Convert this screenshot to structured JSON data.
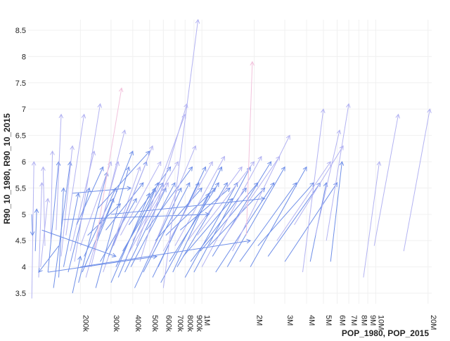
{
  "chart_data": {
    "type": "scatter",
    "mark": "arrow",
    "title": "",
    "xlabel": "POP_1980, POP_2015",
    "ylabel": "R90_10_1980, R90_10_2015",
    "x_scale": "log",
    "xlim": [
      100000,
      21000000
    ],
    "ylim": [
      3.3,
      8.7
    ],
    "grid": true,
    "legend": "none",
    "colors": {
      "arrow_main": "#6f8fe8",
      "arrow_light": "#b3b3f2",
      "arrow_pink": "#f2c2dc",
      "grid": "#f0f0f0",
      "text": "#222222"
    },
    "x_ticks": [
      {
        "value": 200000,
        "label": "200k"
      },
      {
        "value": 300000,
        "label": "300k"
      },
      {
        "value": 400000,
        "label": "400k"
      },
      {
        "value": 500000,
        "label": "500k"
      },
      {
        "value": 600000,
        "label": "600k"
      },
      {
        "value": 700000,
        "label": "700k"
      },
      {
        "value": 800000,
        "label": "800k"
      },
      {
        "value": 900000,
        "label": "900k"
      },
      {
        "value": 1000000,
        "label": "1M"
      },
      {
        "value": 2000000,
        "label": "2M"
      },
      {
        "value": 3000000,
        "label": "3M"
      },
      {
        "value": 4000000,
        "label": "4M"
      },
      {
        "value": 5000000,
        "label": "5M"
      },
      {
        "value": 6000000,
        "label": "6M"
      },
      {
        "value": 7000000,
        "label": "7M"
      },
      {
        "value": 8000000,
        "label": "8M"
      },
      {
        "value": 9000000,
        "label": "9M"
      },
      {
        "value": 10000000,
        "label": "10M"
      },
      {
        "value": 20000000,
        "label": "20M"
      }
    ],
    "y_ticks": [
      3.5,
      4,
      4.5,
      5,
      5.5,
      6,
      6.5,
      7,
      7.5,
      8,
      8.5
    ],
    "arrows": [
      {
        "x1": 105000,
        "y1": 3.4,
        "x2": 108000,
        "y2": 6.0,
        "tone": "light"
      },
      {
        "x1": 110000,
        "y1": 4.3,
        "x2": 112000,
        "y2": 5.1,
        "tone": "main"
      },
      {
        "x1": 105000,
        "y1": 5.0,
        "x2": 106000,
        "y2": 4.6,
        "tone": "main"
      },
      {
        "x1": 115000,
        "y1": 3.8,
        "x2": 120000,
        "y2": 5.6,
        "tone": "light"
      },
      {
        "x1": 118000,
        "y1": 4.0,
        "x2": 130000,
        "y2": 5.3,
        "tone": "light"
      },
      {
        "x1": 125000,
        "y1": 4.4,
        "x2": 122000,
        "y2": 5.9,
        "tone": "light"
      },
      {
        "x1": 130000,
        "y1": 3.9,
        "x2": 150000,
        "y2": 6.0,
        "tone": "main"
      },
      {
        "x1": 135000,
        "y1": 4.5,
        "x2": 138000,
        "y2": 6.2,
        "tone": "light"
      },
      {
        "x1": 140000,
        "y1": 3.6,
        "x2": 175000,
        "y2": 6.0,
        "tone": "main"
      },
      {
        "x1": 145000,
        "y1": 4.7,
        "x2": 155000,
        "y2": 6.9,
        "tone": "light"
      },
      {
        "x1": 150000,
        "y1": 3.8,
        "x2": 160000,
        "y2": 5.5,
        "tone": "main"
      },
      {
        "x1": 155000,
        "y1": 4.2,
        "x2": 180000,
        "y2": 6.3,
        "tone": "light"
      },
      {
        "x1": 160000,
        "y1": 4.0,
        "x2": 195000,
        "y2": 5.4,
        "tone": "main"
      },
      {
        "x1": 165000,
        "y1": 4.6,
        "x2": 210000,
        "y2": 6.9,
        "tone": "light"
      },
      {
        "x1": 170000,
        "y1": 3.9,
        "x2": 225000,
        "y2": 5.5,
        "tone": "main"
      },
      {
        "x1": 175000,
        "y1": 4.3,
        "x2": 240000,
        "y2": 6.2,
        "tone": "light"
      },
      {
        "x1": 180000,
        "y1": 3.5,
        "x2": 200000,
        "y2": 4.2,
        "tone": "main"
      },
      {
        "x1": 185000,
        "y1": 4.1,
        "x2": 260000,
        "y2": 7.1,
        "tone": "light"
      },
      {
        "x1": 190000,
        "y1": 4.8,
        "x2": 270000,
        "y2": 5.9,
        "tone": "main"
      },
      {
        "x1": 195000,
        "y1": 3.7,
        "x2": 285000,
        "y2": 5.8,
        "tone": "main"
      },
      {
        "x1": 200000,
        "y1": 4.4,
        "x2": 300000,
        "y2": 6.0,
        "tone": "light"
      },
      {
        "x1": 205000,
        "y1": 3.9,
        "x2": 310000,
        "y2": 5.3,
        "tone": "main"
      },
      {
        "x1": 210000,
        "y1": 4.2,
        "x2": 320000,
        "y2": 5.5,
        "tone": "main"
      },
      {
        "x1": 215000,
        "y1": 3.8,
        "x2": 330000,
        "y2": 6.0,
        "tone": "light"
      },
      {
        "x1": 220000,
        "y1": 4.6,
        "x2": 340000,
        "y2": 5.2,
        "tone": "main"
      },
      {
        "x1": 180000,
        "y1": 5.4,
        "x2": 390000,
        "y2": 5.5,
        "tone": "main"
      },
      {
        "x1": 230000,
        "y1": 4.0,
        "x2": 360000,
        "y2": 6.6,
        "tone": "light"
      },
      {
        "x1": 240000,
        "y1": 4.3,
        "x2": 345000,
        "y2": 7.4,
        "tone": "pink"
      },
      {
        "x1": 245000,
        "y1": 3.6,
        "x2": 380000,
        "y2": 5.9,
        "tone": "main"
      },
      {
        "x1": 250000,
        "y1": 4.5,
        "x2": 400000,
        "y2": 6.2,
        "tone": "main"
      },
      {
        "x1": 260000,
        "y1": 4.1,
        "x2": 420000,
        "y2": 5.3,
        "tone": "main"
      },
      {
        "x1": 270000,
        "y1": 3.9,
        "x2": 440000,
        "y2": 5.9,
        "tone": "light"
      },
      {
        "x1": 280000,
        "y1": 4.7,
        "x2": 460000,
        "y2": 5.6,
        "tone": "main"
      },
      {
        "x1": 290000,
        "y1": 4.2,
        "x2": 480000,
        "y2": 6.0,
        "tone": "main"
      },
      {
        "x1": 300000,
        "y1": 3.7,
        "x2": 500000,
        "y2": 5.4,
        "tone": "main"
      },
      {
        "x1": 310000,
        "y1": 4.4,
        "x2": 520000,
        "y2": 6.3,
        "tone": "light"
      },
      {
        "x1": 320000,
        "y1": 4.0,
        "x2": 540000,
        "y2": 5.5,
        "tone": "main"
      },
      {
        "x1": 330000,
        "y1": 3.8,
        "x2": 560000,
        "y2": 5.6,
        "tone": "main"
      },
      {
        "x1": 340000,
        "y1": 4.6,
        "x2": 580000,
        "y2": 6.0,
        "tone": "light"
      },
      {
        "x1": 350000,
        "y1": 4.3,
        "x2": 600000,
        "y2": 5.6,
        "tone": "main"
      },
      {
        "x1": 360000,
        "y1": 3.9,
        "x2": 620000,
        "y2": 5.5,
        "tone": "main"
      },
      {
        "x1": 370000,
        "y1": 4.2,
        "x2": 640000,
        "y2": 5.6,
        "tone": "light"
      },
      {
        "x1": 380000,
        "y1": 4.8,
        "x2": 660000,
        "y2": 5.9,
        "tone": "main"
      },
      {
        "x1": 390000,
        "y1": 4.0,
        "x2": 700000,
        "y2": 5.6,
        "tone": "main"
      },
      {
        "x1": 400000,
        "y1": 4.5,
        "x2": 730000,
        "y2": 6.0,
        "tone": "light"
      },
      {
        "x1": 410000,
        "y1": 3.6,
        "x2": 760000,
        "y2": 5.5,
        "tone": "main"
      },
      {
        "x1": 420000,
        "y1": 4.4,
        "x2": 800000,
        "y2": 6.9,
        "tone": "light"
      },
      {
        "x1": 440000,
        "y1": 4.1,
        "x2": 820000,
        "y2": 7.1,
        "tone": "light"
      },
      {
        "x1": 460000,
        "y1": 3.9,
        "x2": 850000,
        "y2": 5.6,
        "tone": "main"
      },
      {
        "x1": 480000,
        "y1": 4.7,
        "x2": 880000,
        "y2": 5.9,
        "tone": "main"
      },
      {
        "x1": 500000,
        "y1": 4.2,
        "x2": 920000,
        "y2": 6.3,
        "tone": "light"
      },
      {
        "x1": 520000,
        "y1": 3.8,
        "x2": 960000,
        "y2": 5.6,
        "tone": "main"
      },
      {
        "x1": 540000,
        "y1": 4.5,
        "x2": 1000000,
        "y2": 5.5,
        "tone": "main"
      },
      {
        "x1": 560000,
        "y1": 4.0,
        "x2": 1050000,
        "y2": 5.9,
        "tone": "main"
      },
      {
        "x1": 580000,
        "y1": 3.7,
        "x2": 1100000,
        "y2": 5.4,
        "tone": "main"
      },
      {
        "x1": 600000,
        "y1": 4.3,
        "x2": 1150000,
        "y2": 6.0,
        "tone": "light"
      },
      {
        "x1": 620000,
        "y1": 4.6,
        "x2": 1200000,
        "y2": 5.5,
        "tone": "main"
      },
      {
        "x1": 650000,
        "y1": 4.1,
        "x2": 1250000,
        "y2": 5.6,
        "tone": "main"
      },
      {
        "x1": 680000,
        "y1": 3.9,
        "x2": 1300000,
        "y2": 5.9,
        "tone": "main"
      },
      {
        "x1": 700000,
        "y1": 4.4,
        "x2": 1350000,
        "y2": 6.1,
        "tone": "light"
      },
      {
        "x1": 720000,
        "y1": 4.0,
        "x2": 1400000,
        "y2": 5.6,
        "tone": "main"
      },
      {
        "x1": 750000,
        "y1": 4.7,
        "x2": 1450000,
        "y2": 5.5,
        "tone": "main"
      },
      {
        "x1": 780000,
        "y1": 4.2,
        "x2": 1500000,
        "y2": 5.3,
        "tone": "main"
      },
      {
        "x1": 800000,
        "y1": 3.8,
        "x2": 1600000,
        "y2": 5.6,
        "tone": "main"
      },
      {
        "x1": 830000,
        "y1": 4.5,
        "x2": 1700000,
        "y2": 5.9,
        "tone": "light"
      },
      {
        "x1": 860000,
        "y1": 4.1,
        "x2": 1800000,
        "y2": 5.5,
        "tone": "main"
      },
      {
        "x1": 900000,
        "y1": 3.9,
        "x2": 1900000,
        "y2": 5.9,
        "tone": "main"
      },
      {
        "x1": 940000,
        "y1": 4.6,
        "x2": 2000000,
        "y2": 6.0,
        "tone": "light"
      },
      {
        "x1": 980000,
        "y1": 4.3,
        "x2": 2100000,
        "y2": 5.6,
        "tone": "main"
      },
      {
        "x1": 1000000,
        "y1": 4.0,
        "x2": 2200000,
        "y2": 6.1,
        "tone": "light"
      },
      {
        "x1": 1100000,
        "y1": 4.4,
        "x2": 2300000,
        "y2": 5.5,
        "tone": "main"
      },
      {
        "x1": 1150000,
        "y1": 4.2,
        "x2": 2500000,
        "y2": 6.0,
        "tone": "main"
      },
      {
        "x1": 1200000,
        "y1": 3.9,
        "x2": 2600000,
        "y2": 5.6,
        "tone": "main"
      },
      {
        "x1": 1300000,
        "y1": 4.5,
        "x2": 2800000,
        "y2": 6.1,
        "tone": "light"
      },
      {
        "x1": 1400000,
        "y1": 4.0,
        "x2": 3000000,
        "y2": 5.9,
        "tone": "main"
      },
      {
        "x1": 1500000,
        "y1": 4.3,
        "x2": 3200000,
        "y2": 6.5,
        "tone": "light"
      },
      {
        "x1": 1650000,
        "y1": 4.1,
        "x2": 3500000,
        "y2": 5.6,
        "tone": "main"
      },
      {
        "x1": 1800000,
        "y1": 4.6,
        "x2": 1950000,
        "y2": 7.9,
        "tone": "pink"
      },
      {
        "x1": 1900000,
        "y1": 4.0,
        "x2": 4000000,
        "y2": 5.9,
        "tone": "main"
      },
      {
        "x1": 2100000,
        "y1": 4.4,
        "x2": 4400000,
        "y2": 5.6,
        "tone": "main"
      },
      {
        "x1": 2400000,
        "y1": 4.2,
        "x2": 4800000,
        "y2": 5.6,
        "tone": "main"
      },
      {
        "x1": 2700000,
        "y1": 4.5,
        "x2": 5500000,
        "y2": 6.0,
        "tone": "light"
      },
      {
        "x1": 3000000,
        "y1": 4.1,
        "x2": 6000000,
        "y2": 5.6,
        "tone": "main"
      },
      {
        "x1": 3400000,
        "y1": 4.8,
        "x2": 6500000,
        "y2": 6.3,
        "tone": "light"
      },
      {
        "x1": 3800000,
        "y1": 3.9,
        "x2": 5000000,
        "y2": 7.0,
        "tone": "light"
      },
      {
        "x1": 4200000,
        "y1": 4.1,
        "x2": 5200000,
        "y2": 5.6,
        "tone": "main"
      },
      {
        "x1": 4500000,
        "y1": 4.6,
        "x2": 6200000,
        "y2": 6.6,
        "tone": "light"
      },
      {
        "x1": 5200000,
        "y1": 4.5,
        "x2": 7000000,
        "y2": 7.1,
        "tone": "light"
      },
      {
        "x1": 5500000,
        "y1": 4.1,
        "x2": 6400000,
        "y2": 6.0,
        "tone": "main"
      },
      {
        "x1": 8500000,
        "y1": 3.8,
        "x2": 10500000,
        "y2": 6.0,
        "tone": "light"
      },
      {
        "x1": 9800000,
        "y1": 4.4,
        "x2": 13500000,
        "y2": 6.9,
        "tone": "light"
      },
      {
        "x1": 14500000,
        "y1": 4.3,
        "x2": 20500000,
        "y2": 7.0,
        "tone": "light"
      },
      {
        "x1": 600000,
        "y1": 3.6,
        "x2": 950000,
        "y2": 8.7,
        "tone": "light"
      },
      {
        "x1": 250000,
        "y1": 5.1,
        "x2": 500000,
        "y2": 6.2,
        "tone": "main"
      },
      {
        "x1": 120000,
        "y1": 4.7,
        "x2": 320000,
        "y2": 4.2,
        "tone": "main"
      },
      {
        "x1": 130000,
        "y1": 3.9,
        "x2": 550000,
        "y2": 4.2,
        "tone": "main"
      },
      {
        "x1": 160000,
        "y1": 4.9,
        "x2": 1100000,
        "y2": 5.0,
        "tone": "main"
      },
      {
        "x1": 300000,
        "y1": 5.0,
        "x2": 2300000,
        "y2": 5.3,
        "tone": "main"
      },
      {
        "x1": 200000,
        "y1": 4.0,
        "x2": 1900000,
        "y2": 4.5,
        "tone": "main"
      },
      {
        "x1": 150000,
        "y1": 4.4,
        "x2": 115000,
        "y2": 3.9,
        "tone": "main"
      }
    ]
  }
}
